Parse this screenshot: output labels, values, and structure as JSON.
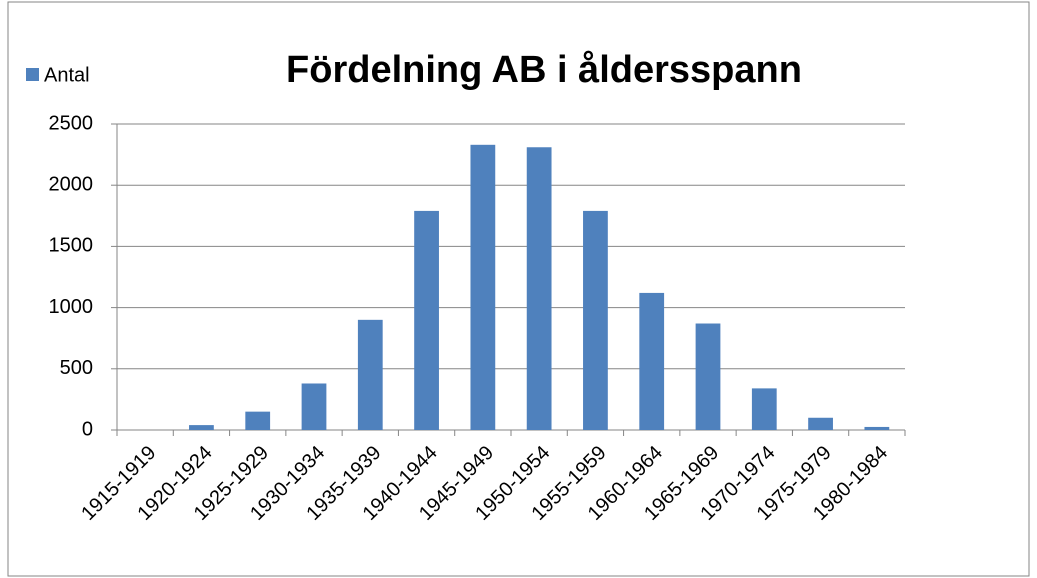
{
  "chart_data": {
    "type": "bar",
    "title": "Fördelning AB i åldersspann",
    "categories": [
      "1915-1919",
      "1920-1924",
      "1925-1929",
      "1930-1934",
      "1935-1939",
      "1940-1944",
      "1945-1949",
      "1950-1954",
      "1955-1959",
      "1960-1964",
      "1965-1969",
      "1970-1974",
      "1975-1979",
      "1980-1984"
    ],
    "series": [
      {
        "name": "Antal",
        "color": "#4f81bd",
        "values": [
          0,
          40,
          150,
          380,
          900,
          1790,
          2330,
          2310,
          1790,
          1120,
          870,
          340,
          100,
          25
        ]
      }
    ],
    "ylim": [
      0,
      2500
    ],
    "yticks": [
      0,
      500,
      1000,
      1500,
      2000,
      2500
    ],
    "grid": true,
    "legend": "top-left"
  }
}
